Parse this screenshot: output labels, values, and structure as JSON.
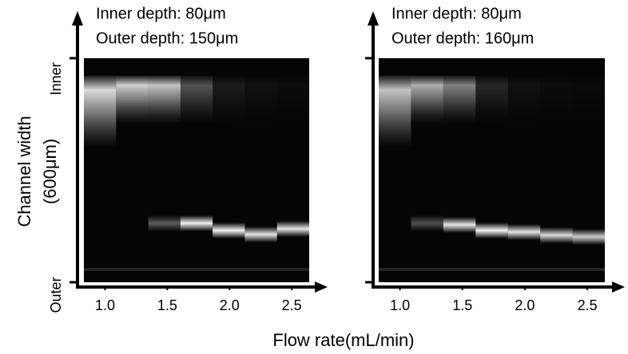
{
  "figure": {
    "x_label": "Flow rate(mL/min)",
    "y_label": [
      "Channel width",
      "(600μm)"
    ]
  },
  "chart_data": [
    {
      "type": "image",
      "annotations": [
        "Inner depth: 80μm",
        "Outer depth: 150μm"
      ],
      "xlim": [
        0.83,
        2.64
      ],
      "xticks": [
        {
          "value": 1,
          "label": "1.0"
        },
        {
          "value": 1.5,
          "label": "1.5"
        },
        {
          "value": 2,
          "label": "2.0"
        },
        {
          "value": 2.5,
          "label": "2.5"
        }
      ],
      "y_tick_labels": [
        "Inner",
        "Outer"
      ]
    },
    {
      "type": "image",
      "annotations": [
        "Inner depth: 80μm",
        "Outer depth: 160μm"
      ],
      "xlim": [
        0.83,
        2.64
      ],
      "xticks": [
        {
          "value": 1,
          "label": "1.0"
        },
        {
          "value": 1.5,
          "label": "1.5"
        },
        {
          "value": 2,
          "label": "2.0"
        },
        {
          "value": 2.5,
          "label": "2.5"
        }
      ]
    }
  ]
}
